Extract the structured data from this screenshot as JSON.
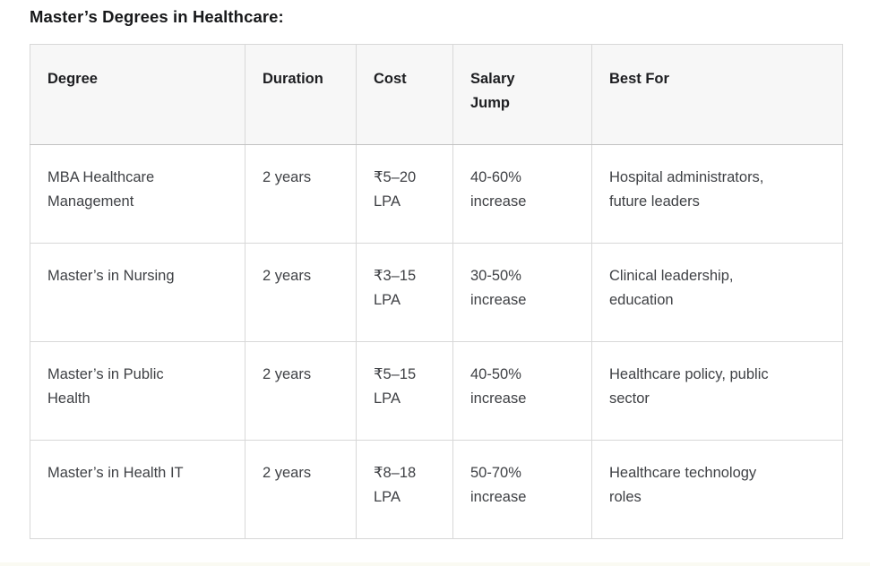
{
  "page": {
    "title": "Master’s Degrees in Healthcare:"
  },
  "table": {
    "columns": [
      {
        "label": "Degree"
      },
      {
        "label": "Duration"
      },
      {
        "label": "Cost"
      },
      {
        "label": "Salary Jump"
      },
      {
        "label": "Best For"
      }
    ],
    "rows": [
      {
        "degree": "MBA Healthcare Management",
        "duration": "2 years",
        "cost": "₹5–20 LPA",
        "salary_jump": "40-60% increase",
        "best_for": "Hospital administrators, future leaders"
      },
      {
        "degree": "Master’s in Nursing",
        "duration": "2 years",
        "cost": "₹3–15 LPA",
        "salary_jump": "30-50% increase",
        "best_for": "Clinical leadership, education"
      },
      {
        "degree": "Master’s in Public Health",
        "duration": "2 years",
        "cost": "₹5–15 LPA",
        "salary_jump": "40-50% increase",
        "best_for": "Healthcare policy, public sector"
      },
      {
        "degree": "Master’s in Health IT",
        "duration": "2 years",
        "cost": "₹8–18 LPA",
        "salary_jump": "50-70% increase",
        "best_for": "Healthcare technology roles"
      }
    ]
  },
  "colors": {
    "title": "#18191b",
    "header_text": "#1d1e21",
    "body_text": "#3f4145",
    "header_bg": "#f7f7f7",
    "border_outer": "#c6c6c6",
    "border_inner": "#d8d8d8",
    "border_header_bottom": "#c2c2c2",
    "footer_strip": "#fafaf2"
  }
}
